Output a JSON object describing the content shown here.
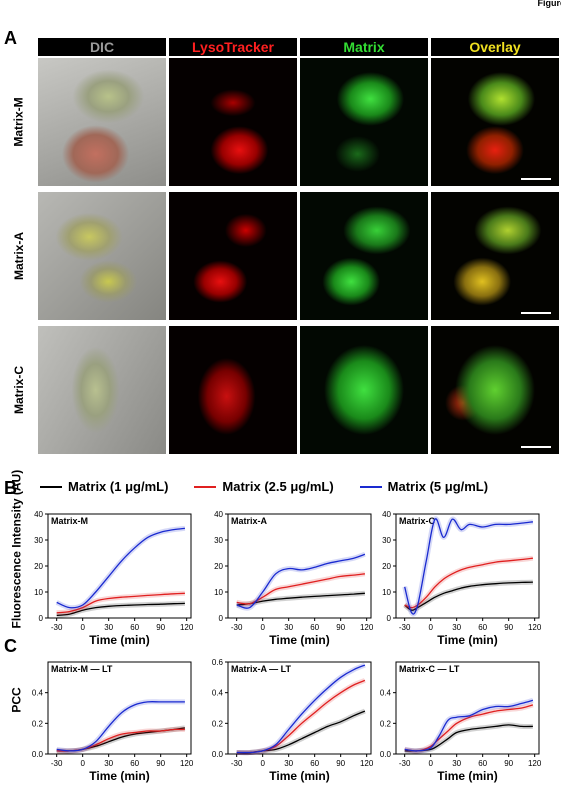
{
  "figure_label": "Figure",
  "panels": {
    "a": "A",
    "b": "B",
    "c": "C"
  },
  "columns": [
    "DIC",
    "LysoTracker",
    "Matrix",
    "Overlay"
  ],
  "column_colors": [
    "#9a9a9a",
    "#ff2020",
    "#33dd33",
    "#f0e020"
  ],
  "rows": [
    "Matrix-M",
    "Matrix-A",
    "Matrix-C"
  ],
  "legend": [
    {
      "label": "Matrix (1 μg/mL)",
      "color": "#000000"
    },
    {
      "label": "Matrix (2.5 μg/mL)",
      "color": "#e02020"
    },
    {
      "label": "Matrix (5 μg/mL)",
      "color": "#1a2ad0"
    }
  ],
  "b_ylabel": "Fluorescence Intensity (AU)",
  "c_ylabel": "PCC",
  "xlabel": "Time (min)",
  "chart_data": [
    {
      "type": "line",
      "panel": "B",
      "title": "Matrix-M",
      "xlabel": "Time (min)",
      "ylabel": "Fluorescence Intensity (AU)",
      "xlim": [
        -40,
        125
      ],
      "ylim": [
        0,
        40
      ],
      "xticks": [
        -30,
        0,
        30,
        60,
        90,
        120
      ],
      "yticks": [
        0,
        10,
        20,
        30,
        40
      ],
      "x": [
        -30,
        -15,
        0,
        15,
        30,
        45,
        60,
        75,
        90,
        105,
        118
      ],
      "series": [
        {
          "name": "Matrix (1 μg/mL)",
          "values": [
            1,
            1.5,
            3,
            4,
            4.5,
            4.8,
            5,
            5.2,
            5.3,
            5.5,
            5.6
          ]
        },
        {
          "name": "Matrix (2.5 μg/mL)",
          "values": [
            2,
            2.5,
            4,
            6.5,
            7.5,
            8,
            8.3,
            8.7,
            9,
            9.3,
            9.5
          ]
        },
        {
          "name": "Matrix (5 μg/mL)",
          "values": [
            6,
            4,
            5,
            10,
            16,
            22,
            27,
            31,
            33,
            34,
            34.5
          ]
        }
      ]
    },
    {
      "type": "line",
      "panel": "B",
      "title": "Matrix-A",
      "xlabel": "Time (min)",
      "ylabel": "",
      "xlim": [
        -40,
        125
      ],
      "ylim": [
        0,
        40
      ],
      "xticks": [
        -30,
        0,
        30,
        60,
        90,
        120
      ],
      "yticks": [
        0,
        10,
        20,
        30,
        40
      ],
      "x": [
        -30,
        -15,
        0,
        15,
        30,
        45,
        60,
        75,
        90,
        105,
        118
      ],
      "series": [
        {
          "name": "Matrix (1 μg/mL)",
          "values": [
            5,
            5.5,
            6.5,
            7.2,
            7.6,
            8,
            8.3,
            8.6,
            8.9,
            9.2,
            9.5
          ]
        },
        {
          "name": "Matrix (2.5 μg/mL)",
          "values": [
            6,
            5.5,
            8,
            11,
            12,
            13,
            14,
            15,
            16,
            16.5,
            17
          ]
        },
        {
          "name": "Matrix (5 μg/mL)",
          "values": [
            5,
            4,
            10,
            17,
            19,
            18.5,
            19.5,
            21,
            22,
            23,
            24.5
          ]
        }
      ]
    },
    {
      "type": "line",
      "panel": "B",
      "title": "Matrix-C",
      "xlabel": "Time (min)",
      "ylabel": "",
      "xlim": [
        -40,
        125
      ],
      "ylim": [
        0,
        40
      ],
      "xticks": [
        -30,
        0,
        30,
        60,
        90,
        120
      ],
      "yticks": [
        0,
        10,
        20,
        30,
        40
      ],
      "x": [
        -30,
        -22,
        -15,
        -5,
        5,
        15,
        25,
        35,
        45,
        60,
        75,
        90,
        105,
        118
      ],
      "series": [
        {
          "name": "Matrix (1 μg/mL)",
          "values": [
            5,
            3,
            4,
            6,
            8,
            9.5,
            10.5,
            11.5,
            12.2,
            12.8,
            13.2,
            13.5,
            13.7,
            13.8
          ]
        },
        {
          "name": "Matrix (2.5 μg/mL)",
          "values": [
            5,
            4,
            5,
            8,
            12,
            15,
            17,
            18.5,
            19.5,
            20.5,
            21.5,
            22,
            22.5,
            23
          ]
        },
        {
          "name": "Matrix (5 μg/mL)",
          "values": [
            12,
            2,
            5,
            22,
            38,
            31,
            38,
            34,
            36,
            35,
            36,
            36,
            36.5,
            37
          ]
        }
      ]
    },
    {
      "type": "line",
      "panel": "C",
      "title": "Matrix-M — LT",
      "xlabel": "Time (min)",
      "ylabel": "PCC",
      "xlim": [
        -40,
        125
      ],
      "ylim": [
        0,
        0.6
      ],
      "xticks": [
        -30,
        0,
        30,
        60,
        90,
        120
      ],
      "yticks": [
        0,
        0.2,
        0.4
      ],
      "x": [
        -30,
        -15,
        0,
        15,
        30,
        45,
        60,
        75,
        90,
        105,
        118
      ],
      "series": [
        {
          "name": "Matrix (1 μg/mL)",
          "values": [
            0.02,
            0.02,
            0.03,
            0.05,
            0.08,
            0.11,
            0.13,
            0.14,
            0.15,
            0.16,
            0.17
          ]
        },
        {
          "name": "Matrix (2.5 μg/mL)",
          "values": [
            0.02,
            0.02,
            0.03,
            0.06,
            0.1,
            0.13,
            0.14,
            0.15,
            0.15,
            0.16,
            0.16
          ]
        },
        {
          "name": "Matrix (5 μg/mL)",
          "values": [
            0.03,
            0.02,
            0.03,
            0.08,
            0.18,
            0.27,
            0.32,
            0.34,
            0.34,
            0.34,
            0.34
          ]
        }
      ]
    },
    {
      "type": "line",
      "panel": "C",
      "title": "Matrix-A — LT",
      "xlabel": "Time (min)",
      "ylabel": "",
      "xlim": [
        -40,
        125
      ],
      "ylim": [
        0,
        0.6
      ],
      "xticks": [
        -30,
        0,
        30,
        60,
        90,
        120
      ],
      "yticks": [
        0,
        0.2,
        0.4,
        0.6
      ],
      "x": [
        -30,
        -15,
        0,
        15,
        30,
        45,
        60,
        75,
        90,
        105,
        118
      ],
      "series": [
        {
          "name": "Matrix (1 μg/mL)",
          "values": [
            0.01,
            0.01,
            0.02,
            0.03,
            0.06,
            0.1,
            0.14,
            0.18,
            0.21,
            0.25,
            0.28
          ]
        },
        {
          "name": "Matrix (2.5 μg/mL)",
          "values": [
            0.01,
            0.01,
            0.02,
            0.05,
            0.12,
            0.2,
            0.27,
            0.34,
            0.4,
            0.45,
            0.48
          ]
        },
        {
          "name": "Matrix (5 μg/mL)",
          "values": [
            0.01,
            0.01,
            0.02,
            0.06,
            0.16,
            0.26,
            0.35,
            0.43,
            0.5,
            0.55,
            0.58
          ]
        }
      ]
    },
    {
      "type": "line",
      "panel": "C",
      "title": "Matrix-C — LT",
      "xlabel": "Time (min)",
      "ylabel": "",
      "xlim": [
        -40,
        125
      ],
      "ylim": [
        0,
        0.6
      ],
      "xticks": [
        -30,
        0,
        30,
        60,
        90,
        120
      ],
      "yticks": [
        0,
        0.2,
        0.4
      ],
      "x": [
        -30,
        -15,
        0,
        10,
        20,
        30,
        45,
        60,
        75,
        90,
        105,
        118
      ],
      "series": [
        {
          "name": "Matrix (1 μg/mL)",
          "values": [
            0.02,
            0.02,
            0.03,
            0.06,
            0.1,
            0.14,
            0.16,
            0.17,
            0.18,
            0.19,
            0.18,
            0.18
          ]
        },
        {
          "name": "Matrix (2.5 μg/mL)",
          "values": [
            0.03,
            0.02,
            0.05,
            0.1,
            0.15,
            0.2,
            0.24,
            0.26,
            0.28,
            0.29,
            0.3,
            0.32
          ]
        },
        {
          "name": "Matrix (5 μg/mL)",
          "values": [
            0.03,
            0.02,
            0.04,
            0.12,
            0.22,
            0.24,
            0.25,
            0.29,
            0.31,
            0.31,
            0.33,
            0.35
          ]
        }
      ]
    }
  ]
}
